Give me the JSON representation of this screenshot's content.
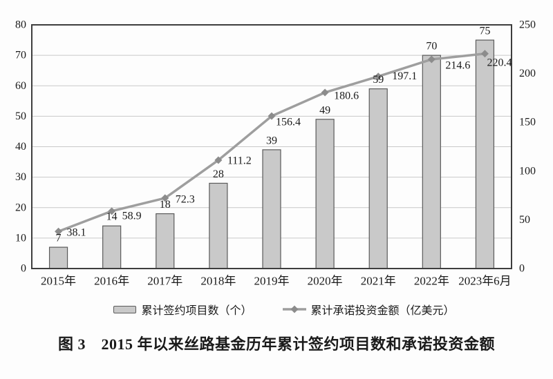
{
  "figure": {
    "caption": "图 3　2015 年以来丝路基金历年累计签约项目数和承诺投资金额"
  },
  "chart_data": {
    "type": "combo-bar-line",
    "title": "图 3　2015 年以来丝路基金历年累计签约项目数和承诺投资金额",
    "categories": [
      "2015年",
      "2016年",
      "2017年",
      "2018年",
      "2019年",
      "2020年",
      "2021年",
      "2022年",
      "2023年6月"
    ],
    "series": [
      {
        "name": "累计签约项目数（个）",
        "type": "bar",
        "axis": "left",
        "values": [
          7,
          14,
          18,
          28,
          39,
          49,
          59,
          70,
          75
        ]
      },
      {
        "name": "累计承诺投资金额（亿美元）",
        "type": "line",
        "axis": "right",
        "values": [
          38.1,
          58.9,
          72.3,
          111.2,
          156.4,
          180.6,
          197.1,
          214.6,
          220.4
        ]
      }
    ],
    "left_axis": {
      "min": 0,
      "max": 80,
      "step": 10,
      "tick_labels": [
        "0",
        "10",
        "20",
        "30",
        "40",
        "50",
        "60",
        "70",
        "80"
      ]
    },
    "right_axis": {
      "min": 0,
      "max": 250,
      "step": 50,
      "tick_labels": [
        "0",
        "50",
        "100",
        "150",
        "200",
        "250"
      ]
    },
    "grid": true,
    "legend_position": "bottom",
    "colors": {
      "bar_fill": "#c9c9c9",
      "bar_stroke": "#5a5a5a",
      "line": "#9e9e9e",
      "marker": "#8c8c8c",
      "grid": "#c8c8c8",
      "plot_border": "#3d3d3d",
      "text": "#1a1a1a",
      "background": "#fdfdfd"
    }
  }
}
